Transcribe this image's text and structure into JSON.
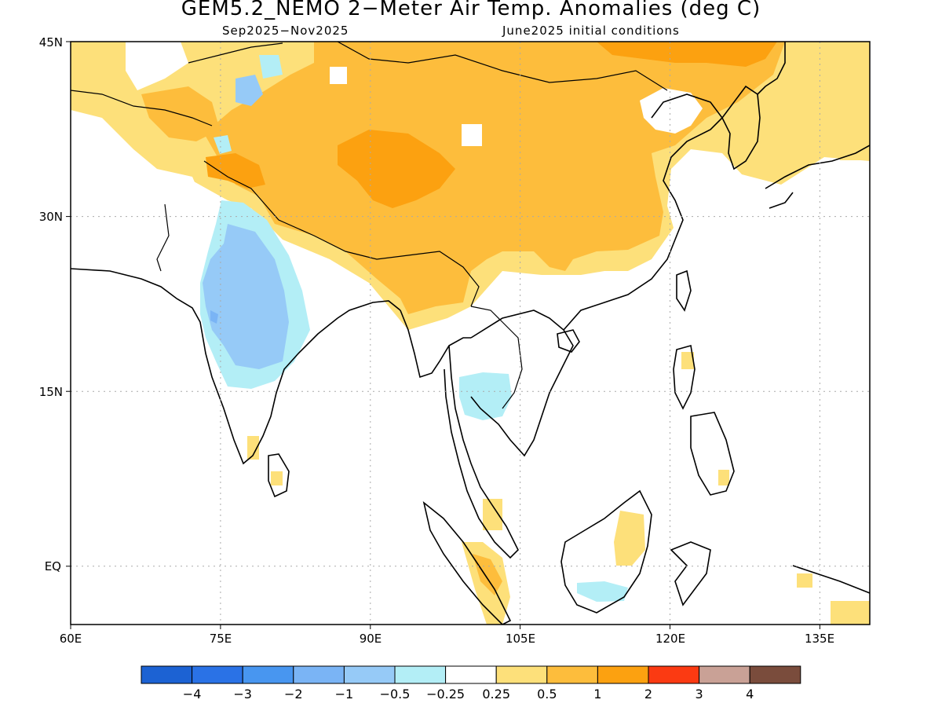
{
  "header": {
    "title": "GEM5.2_NEMO 2−Meter Air Temp. Anomalies (deg C)",
    "period": "Sep2025−Nov2025",
    "init": "June2025 initial conditions"
  },
  "map": {
    "lon_range": [
      60,
      140
    ],
    "lat_range": [
      -5,
      45
    ],
    "lat_ticks": [
      {
        "value": 45,
        "label": "45N"
      },
      {
        "value": 30,
        "label": "30N"
      },
      {
        "value": 15,
        "label": "15N"
      },
      {
        "value": 0,
        "label": "EQ"
      }
    ],
    "lon_ticks": [
      {
        "value": 60,
        "label": "60E"
      },
      {
        "value": 75,
        "label": "75E"
      },
      {
        "value": 90,
        "label": "90E"
      },
      {
        "value": 105,
        "label": "105E"
      },
      {
        "value": 120,
        "label": "120E"
      },
      {
        "value": 135,
        "label": "135E"
      }
    ],
    "grid": "dotted"
  },
  "legend": {
    "colors": [
      "#1c62d3",
      "#2a72e6",
      "#4896f0",
      "#7ab4f5",
      "#96caf7",
      "#b3eef6",
      "#ffffff",
      "#fde07a",
      "#fdbd3c",
      "#fca110",
      "#fb3a12",
      "#c9a196",
      "#7a4c3c"
    ],
    "labels": [
      "−4",
      "−3",
      "−2",
      "−1",
      "−0.5",
      "−0.25",
      "0.25",
      "0.5",
      "1",
      "2",
      "3",
      "4"
    ]
  },
  "colors": {
    "light_yellow": "#fde07a",
    "orange": "#fdbd3c",
    "dark_orange": "#fca110",
    "light_blue": "#96caf7",
    "pale_blue": "#b3eef6",
    "mid_blue": "#7ab4f5"
  }
}
